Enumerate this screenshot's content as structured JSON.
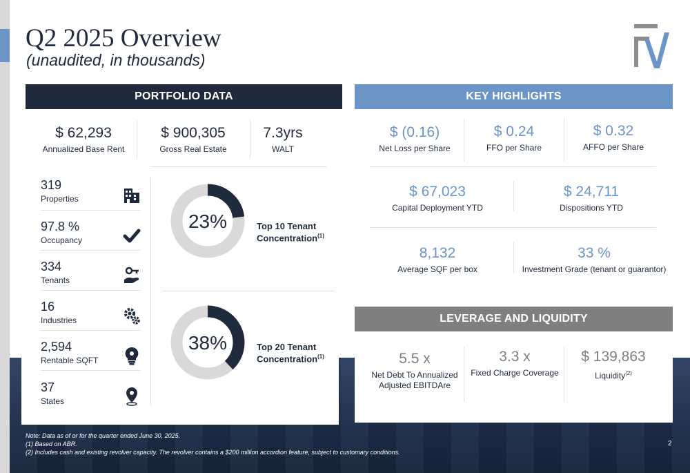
{
  "header": {
    "title": "Q2 2025 Overview",
    "subtitle": "(unaudited, in thousands)"
  },
  "colors": {
    "navy": "#1f2a3c",
    "accent_blue": "#6a95c6",
    "gray": "#7f7f7f",
    "donut_track": "#d9d9d9"
  },
  "portfolio": {
    "heading": "PORTFOLIO DATA",
    "top_stats": [
      {
        "value": "$ 62,293",
        "label": "Annualized Base Rent"
      },
      {
        "value": "$ 900,305",
        "label": "Gross Real Estate"
      },
      {
        "value": "7.3yrs",
        "label": "WALT"
      }
    ],
    "metrics": [
      {
        "value": "319",
        "label": "Properties",
        "icon": "building-icon"
      },
      {
        "value": "97.8 %",
        "label": "Occupancy",
        "icon": "checkmark-icon"
      },
      {
        "value": "334",
        "label": "Tenants",
        "icon": "hand-key-icon"
      },
      {
        "value": "16",
        "label": "Industries",
        "icon": "gears-icon"
      },
      {
        "value": "2,594",
        "label": "Rentable SQFT",
        "icon": "lightbulb-gear-icon"
      },
      {
        "value": "37",
        "label": "States",
        "icon": "location-pin-icon"
      }
    ],
    "concentration": [
      {
        "percent": 23,
        "display": "23%",
        "label_line1": "Top 10 Tenant",
        "label_line2": "Concentration",
        "footnote": "(1)"
      },
      {
        "percent": 38,
        "display": "38%",
        "label_line1": "Top 20 Tenant",
        "label_line2": "Concentration",
        "footnote": "(1)"
      }
    ]
  },
  "highlights": {
    "heading": "KEY HIGHLIGHTS",
    "row1": [
      {
        "value": "$ (0.16)",
        "label": "Net Loss per Share"
      },
      {
        "value": "$ 0.24",
        "label": "FFO per Share"
      },
      {
        "value": "$ 0.32",
        "label": "AFFO per Share"
      }
    ],
    "row2": [
      {
        "value": "$ 67,023",
        "label": "Capital Deployment YTD"
      },
      {
        "value": "$ 24,711",
        "label": "Dispositions YTD"
      }
    ],
    "row3": [
      {
        "value": "8,132",
        "label": "Average SQF per box"
      },
      {
        "value": "33 %",
        "label": "Investment Grade (tenant or guarantor)"
      }
    ]
  },
  "leverage": {
    "heading": "LEVERAGE AND LIQUIDITY",
    "items": [
      {
        "value": "5.5 x",
        "label_line1": "Net Debt To Annualized",
        "label_line2": "Adjusted EBITDAre"
      },
      {
        "value": "3.3 x",
        "label_line1": "Fixed Charge Coverage",
        "label_line2": ""
      },
      {
        "value": "$ 139,863",
        "label_line1": "Liquidity",
        "label_line2": "",
        "footnote": "(2)"
      }
    ]
  },
  "footer": {
    "notes": [
      "Note: Data as of or for the quarter ended June 30, 2025.",
      "(1) Based on ABR.",
      "(2) Includes cash and existing revolver capacity. The revolver contains a $200 million accordion feature, subject to customary conditions."
    ],
    "page_number": "2"
  }
}
